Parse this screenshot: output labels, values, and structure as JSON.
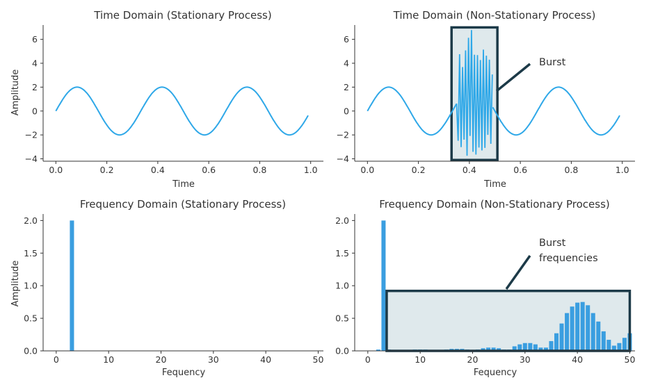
{
  "colors": {
    "signal": "#2fa8e8",
    "bar": "#3a9ee0",
    "box_stroke": "#1c3a48",
    "box_fill": "#dfe9ec",
    "axis": "#333333"
  },
  "chart_data": [
    {
      "type": "line",
      "title": "Time Domain (Stationary Process)",
      "xlabel": "Time",
      "ylabel": "Amplitude",
      "xlim": [
        -0.05,
        1.05
      ],
      "ylim": [
        -4.2,
        7.2
      ],
      "xticks": [
        "0.0",
        "0.2",
        "0.4",
        "0.6",
        "0.8",
        "1.0"
      ],
      "yticks": [
        "−4",
        "−2",
        "0",
        "2",
        "4",
        "6"
      ],
      "grid": false,
      "series": [
        {
          "function": "2*sin(2*pi*3*t)",
          "t_range": [
            0,
            0.99
          ],
          "amplitude": 2,
          "frequency": 3
        }
      ]
    },
    {
      "type": "line",
      "title": "Time Domain (Non-Stationary Process)",
      "xlabel": "Time",
      "ylabel": "",
      "xlim": [
        -0.05,
        1.05
      ],
      "ylim": [
        -4.2,
        7.2
      ],
      "xticks": [
        "0.0",
        "0.2",
        "0.4",
        "0.6",
        "0.8",
        "1.0"
      ],
      "yticks": [
        "−4",
        "−2",
        "0",
        "2",
        "4",
        "6"
      ],
      "grid": false,
      "series": [
        {
          "function": "2*sin(2*pi*3*t) outside burst",
          "t_range": [
            0,
            0.99
          ],
          "amplitude": 2,
          "frequency": 3,
          "burst": {
            "t_start": 0.35,
            "t_end": 0.49,
            "amplitude_range": [
              -3.8,
              6.8
            ]
          }
        }
      ],
      "annotation": {
        "text": "Burst",
        "box": {
          "x_range": [
            0.33,
            0.51
          ],
          "y_range": [
            -4.1,
            7.0
          ]
        }
      }
    },
    {
      "type": "bar",
      "title": "Frequency Domain (Stationary Process)",
      "xlabel": "Fequency",
      "ylabel": "Amplitude",
      "xlim": [
        -2.5,
        51
      ],
      "ylim": [
        0,
        2.1
      ],
      "xticks": [
        "0",
        "10",
        "20",
        "30",
        "40",
        "50"
      ],
      "yticks": [
        "0.0",
        "0.5",
        "1.0",
        "1.5",
        "2.0"
      ],
      "grid": false,
      "bars": [
        {
          "x": 3,
          "value": 2.0
        }
      ]
    },
    {
      "type": "bar",
      "title": "Frequency Domain (Non-Stationary Process)",
      "xlabel": "Fequency",
      "ylabel": "",
      "xlim": [
        -2.5,
        51
      ],
      "ylim": [
        0,
        2.1
      ],
      "xticks": [
        "0",
        "10",
        "20",
        "30",
        "40",
        "50"
      ],
      "yticks": [
        "0.0",
        "0.5",
        "1.0",
        "1.5",
        "2.0"
      ],
      "grid": false,
      "bars": [
        {
          "x": 0,
          "value": 0.0
        },
        {
          "x": 1,
          "value": 0.0
        },
        {
          "x": 2,
          "value": 0.02
        },
        {
          "x": 3,
          "value": 2.0
        },
        {
          "x": 4,
          "value": 0.02
        },
        {
          "x": 5,
          "value": 0.01
        },
        {
          "x": 6,
          "value": 0.01
        },
        {
          "x": 7,
          "value": 0.01
        },
        {
          "x": 8,
          "value": 0.01
        },
        {
          "x": 9,
          "value": 0.02
        },
        {
          "x": 10,
          "value": 0.02
        },
        {
          "x": 11,
          "value": 0.02
        },
        {
          "x": 12,
          "value": 0.01
        },
        {
          "x": 13,
          "value": 0.01
        },
        {
          "x": 14,
          "value": 0.01
        },
        {
          "x": 15,
          "value": 0.02
        },
        {
          "x": 16,
          "value": 0.03
        },
        {
          "x": 17,
          "value": 0.03
        },
        {
          "x": 18,
          "value": 0.03
        },
        {
          "x": 19,
          "value": 0.02
        },
        {
          "x": 20,
          "value": 0.01
        },
        {
          "x": 21,
          "value": 0.02
        },
        {
          "x": 22,
          "value": 0.04
        },
        {
          "x": 23,
          "value": 0.05
        },
        {
          "x": 24,
          "value": 0.05
        },
        {
          "x": 25,
          "value": 0.04
        },
        {
          "x": 26,
          "value": 0.02
        },
        {
          "x": 27,
          "value": 0.02
        },
        {
          "x": 28,
          "value": 0.07
        },
        {
          "x": 29,
          "value": 0.1
        },
        {
          "x": 30,
          "value": 0.12
        },
        {
          "x": 31,
          "value": 0.12
        },
        {
          "x": 32,
          "value": 0.1
        },
        {
          "x": 33,
          "value": 0.05
        },
        {
          "x": 34,
          "value": 0.05
        },
        {
          "x": 35,
          "value": 0.15
        },
        {
          "x": 36,
          "value": 0.27
        },
        {
          "x": 37,
          "value": 0.42
        },
        {
          "x": 38,
          "value": 0.58
        },
        {
          "x": 39,
          "value": 0.68
        },
        {
          "x": 40,
          "value": 0.74
        },
        {
          "x": 41,
          "value": 0.75
        },
        {
          "x": 42,
          "value": 0.7
        },
        {
          "x": 43,
          "value": 0.58
        },
        {
          "x": 44,
          "value": 0.45
        },
        {
          "x": 45,
          "value": 0.3
        },
        {
          "x": 46,
          "value": 0.17
        },
        {
          "x": 47,
          "value": 0.08
        },
        {
          "x": 48,
          "value": 0.12
        },
        {
          "x": 49,
          "value": 0.2
        },
        {
          "x": 50,
          "value": 0.27
        }
      ],
      "annotation": {
        "text": "Burst\nfrequencies",
        "box": {
          "x_range": [
            3.6,
            50
          ],
          "y_range": [
            0.0,
            0.92
          ]
        }
      }
    }
  ]
}
